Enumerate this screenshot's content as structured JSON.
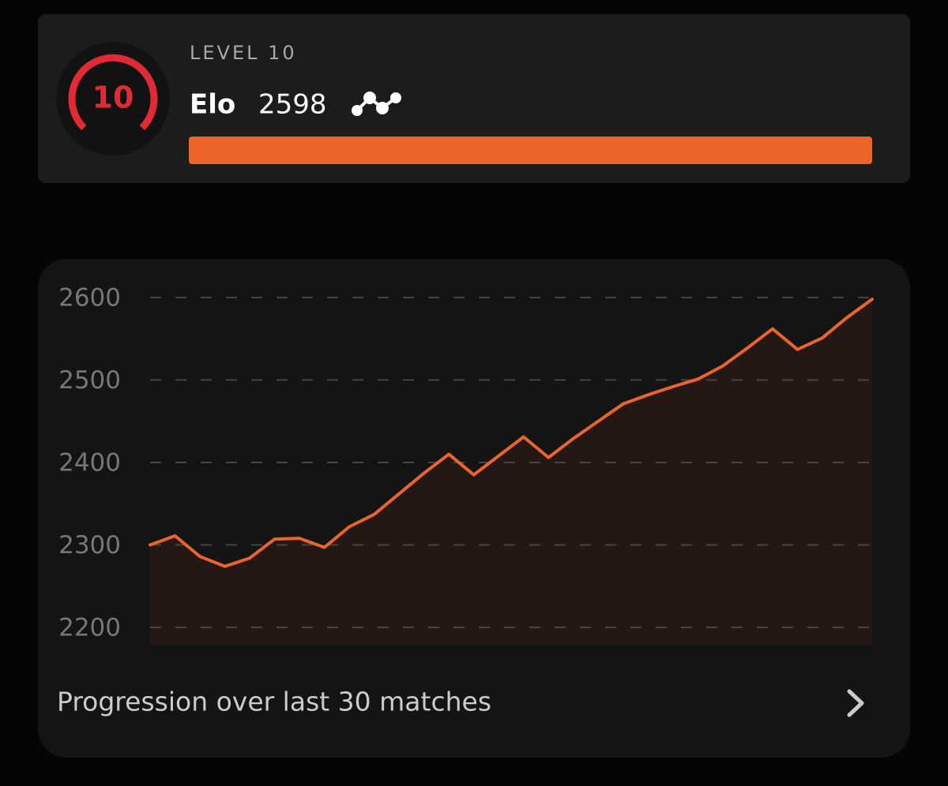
{
  "header": {
    "level_label": "LEVEL 10",
    "level_number": "10",
    "elo_label": "Elo",
    "elo_value": "2598"
  },
  "chart_data": {
    "type": "line",
    "color": "#ec6428",
    "values": [
      2300,
      2311,
      2286,
      2274,
      2284,
      2307,
      2308,
      2297,
      2322,
      2337,
      2362,
      2387,
      2410,
      2385,
      2408,
      2431,
      2406,
      2429,
      2450,
      2471,
      2482,
      2492,
      2501,
      2517,
      2539,
      2562,
      2537,
      2551,
      2576,
      2598
    ],
    "ylim": [
      2200,
      2600
    ],
    "yticks": [
      2200,
      2300,
      2400,
      2500,
      2600
    ],
    "grid": true,
    "caption": "Progression over last 30 matches"
  }
}
